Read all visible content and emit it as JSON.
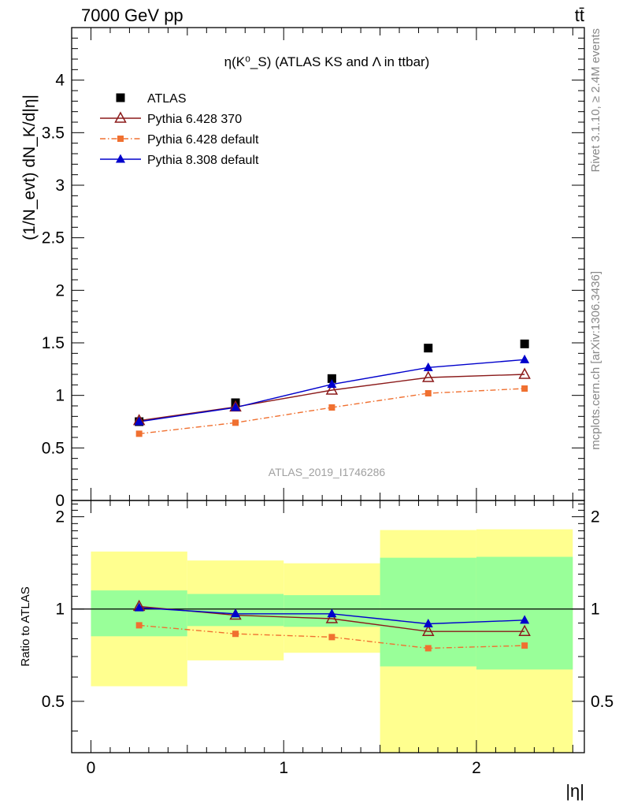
{
  "header": {
    "energy_label": "7000 GeV pp",
    "process_label": "tt̄"
  },
  "side_labels": {
    "rivet": "Rivet 3.1.10, ≥ 2.4M events",
    "mcplots": "mcplots.cern.ch [arXiv:1306.3436]"
  },
  "chart_data": [
    {
      "type": "scatter",
      "panel": "main",
      "title": "η(K⁰_S) (ATLAS KS and Λ in ttbar)",
      "ylabel": "(1/N_evt) dN_K/d|η|",
      "watermark": "ATLAS_2019_I1746286",
      "xlim": [
        -0.1,
        2.56
      ],
      "ylim": [
        0,
        4.5
      ],
      "x_ticks": [
        0,
        1,
        2
      ],
      "y_ticks": [
        0,
        0.5,
        1,
        1.5,
        2,
        2.5,
        3,
        3.5,
        4
      ],
      "y_tick_labels": [
        "0",
        "0.5",
        "1",
        "1.5",
        "2",
        "2.5",
        "3",
        "3.5",
        "4"
      ],
      "legend_position": "top-left",
      "x": [
        0.25,
        0.75,
        1.25,
        1.75,
        2.25
      ],
      "series": [
        {
          "name": "ATLAS",
          "marker": "square",
          "color": "#000000",
          "line": "none",
          "values": [
            0.75,
            0.93,
            1.16,
            1.45,
            1.49
          ]
        },
        {
          "name": "Pythia 6.428 370",
          "marker": "triangle-open",
          "color": "#8b1a1a",
          "line": "solid",
          "values": [
            0.76,
            0.89,
            1.05,
            1.17,
            1.2
          ]
        },
        {
          "name": "Pythia 6.428 default",
          "marker": "square-small",
          "color": "#f07030",
          "line": "dashdot",
          "values": [
            0.635,
            0.74,
            0.885,
            1.02,
            1.065
          ]
        },
        {
          "name": "Pythia 8.308 default",
          "marker": "triangle",
          "color": "#0000cc",
          "line": "solid",
          "values": [
            0.75,
            0.885,
            1.105,
            1.265,
            1.34
          ]
        }
      ]
    },
    {
      "type": "line",
      "panel": "ratio",
      "ylabel": "Ratio to ATLAS",
      "xlabel": "|η|",
      "xlim": [
        -0.1,
        2.56
      ],
      "ylim": [
        0.34,
        2.26
      ],
      "x_ticks": [
        0,
        1,
        2
      ],
      "x_tick_labels": [
        "0",
        "1",
        "2"
      ],
      "y_ticks": [
        0.5,
        1,
        2
      ],
      "y_tick_labels": [
        "0.5",
        "1",
        "2"
      ],
      "reference_line": 1,
      "bins": [
        [
          0,
          0.5
        ],
        [
          0.5,
          1.0
        ],
        [
          1.0,
          1.5
        ],
        [
          1.5,
          2.0
        ],
        [
          2.0,
          2.5
        ]
      ],
      "band_inner": [
        [
          0.815,
          1.15
        ],
        [
          0.88,
          1.12
        ],
        [
          0.875,
          1.11
        ],
        [
          0.65,
          1.47
        ],
        [
          0.635,
          1.48
        ]
      ],
      "band_outer": [
        [
          0.56,
          1.54
        ],
        [
          0.68,
          1.44
        ],
        [
          0.72,
          1.41
        ],
        [
          0.34,
          1.81
        ],
        [
          0.34,
          1.82
        ]
      ],
      "band_colors": {
        "inner": "#99ff99",
        "outer": "#ffff8f"
      },
      "x": [
        0.25,
        0.75,
        1.25,
        1.75,
        2.25
      ],
      "series": [
        {
          "name": "Pythia 6.428 370",
          "marker": "triangle-open",
          "color": "#8b1a1a",
          "line": "solid",
          "values": [
            1.02,
            0.955,
            0.93,
            0.845,
            0.845
          ]
        },
        {
          "name": "Pythia 6.428 default",
          "marker": "square-small",
          "color": "#f07030",
          "line": "dashdot",
          "values": [
            0.885,
            0.83,
            0.81,
            0.745,
            0.76
          ]
        },
        {
          "name": "Pythia 8.308 default",
          "marker": "triangle",
          "color": "#0000cc",
          "line": "solid",
          "values": [
            1.01,
            0.965,
            0.965,
            0.895,
            0.92
          ]
        }
      ]
    }
  ]
}
